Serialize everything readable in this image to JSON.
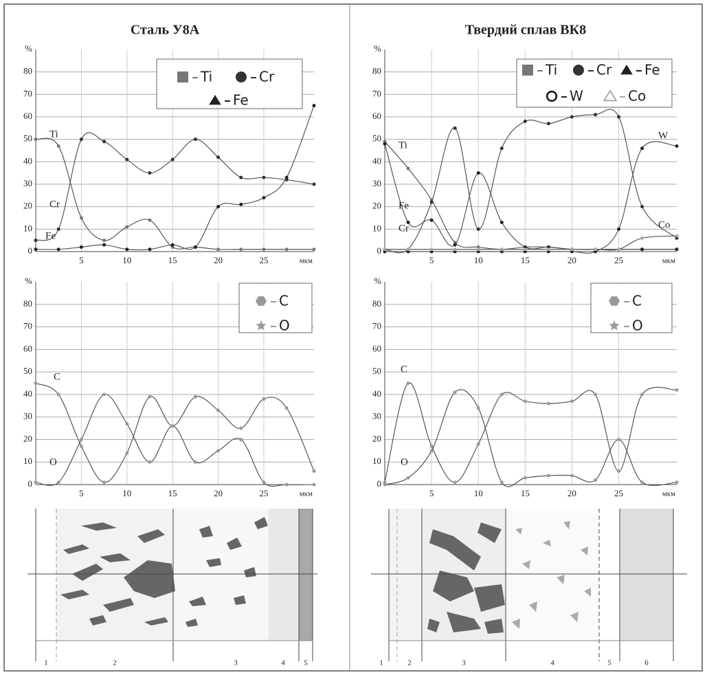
{
  "panels": [
    {
      "title": "Сталь У8А",
      "zones": [
        "1",
        "2",
        "3",
        "4",
        "5"
      ]
    },
    {
      "title": "Твердий сплав ВК8",
      "zones": [
        "1",
        "2",
        "3",
        "4",
        "5",
        "6"
      ]
    }
  ],
  "chart_data": [
    {
      "type": "line",
      "ylabel": "%",
      "xlabel": "мкм",
      "grid": true,
      "xlim": [
        0,
        30.5
      ],
      "ylim": [
        0,
        90
      ],
      "xticks": [
        5,
        10,
        15,
        20,
        25
      ],
      "yticks": [
        0,
        10,
        20,
        30,
        40,
        50,
        60,
        70,
        80
      ],
      "x": [
        0,
        2.5,
        5,
        7.5,
        10,
        12.5,
        15,
        17.5,
        20,
        22.5,
        25,
        27.5,
        30.5
      ],
      "series": [
        {
          "name": "Ti",
          "color": "#777777",
          "marker": "square",
          "values": [
            50,
            47,
            15,
            5,
            11,
            14,
            2,
            2,
            1,
            1,
            1,
            1,
            1
          ]
        },
        {
          "name": "Cr",
          "color": "#333333",
          "marker": "circle",
          "values": [
            5,
            10,
            50,
            49,
            41,
            35,
            41,
            50,
            42,
            33,
            33,
            32,
            30
          ]
        },
        {
          "name": "Fe",
          "color": "#222222",
          "marker": "triangle",
          "values": [
            1,
            1,
            2,
            3,
            1,
            1,
            3,
            2,
            20,
            21,
            24,
            33,
            65
          ]
        }
      ]
    },
    {
      "type": "line",
      "ylabel": "%",
      "xlabel": "мкм",
      "grid": true,
      "xlim": [
        0,
        30.5
      ],
      "ylim": [
        0,
        90
      ],
      "xticks": [
        5,
        10,
        15,
        20,
        25
      ],
      "yticks": [
        0,
        10,
        20,
        30,
        40,
        50,
        60,
        70,
        80
      ],
      "x": [
        0,
        2.5,
        5,
        7.5,
        10,
        12.5,
        15,
        17.5,
        20,
        22.5,
        25,
        27.5,
        30.5
      ],
      "series": [
        {
          "name": "C",
          "color": "#999999",
          "marker": "hexagon",
          "values": [
            45,
            40,
            17,
            1,
            14,
            39,
            26,
            39,
            33,
            25,
            38,
            34,
            6
          ]
        },
        {
          "name": "O",
          "color": "#999999",
          "marker": "star",
          "values": [
            1,
            1,
            20,
            40,
            27,
            10,
            26,
            10,
            15,
            20,
            1,
            0,
            0
          ]
        }
      ]
    },
    {
      "type": "line",
      "ylabel": "%",
      "xlabel": "мкм",
      "grid": true,
      "xlim": [
        0,
        31.2
      ],
      "ylim": [
        0,
        90
      ],
      "xticks": [
        5,
        10,
        15,
        20,
        25
      ],
      "yticks": [
        0,
        10,
        20,
        30,
        40,
        50,
        60,
        70,
        80
      ],
      "x": [
        0,
        2.5,
        5,
        7.5,
        10,
        12.5,
        15,
        17.5,
        20,
        22.5,
        25,
        27.5,
        31.2
      ],
      "series": [
        {
          "name": "Ti",
          "color": "#777777",
          "marker": "square",
          "values": [
            49,
            37,
            23,
            4,
            2,
            1,
            2,
            2,
            1,
            1,
            1,
            1,
            1
          ]
        },
        {
          "name": "Cr",
          "color": "#333333",
          "marker": "circle",
          "values": [
            1,
            1,
            22,
            55,
            10,
            46,
            58,
            57,
            60,
            61,
            60,
            20,
            6
          ]
        },
        {
          "name": "Fe",
          "color": "#222222",
          "marker": "triangle",
          "values": [
            48,
            13,
            14,
            3,
            35,
            13,
            2,
            2,
            1,
            1,
            1,
            1,
            1
          ]
        },
        {
          "name": "W",
          "color": "#222222",
          "marker": "open-circle",
          "values": [
            0,
            0,
            0,
            0,
            0,
            0,
            0,
            0,
            0,
            0,
            10,
            46,
            47
          ]
        },
        {
          "name": "Co",
          "color": "#aaaaaa",
          "marker": "open-triangle",
          "values": [
            1,
            1,
            1,
            1,
            1,
            1,
            1,
            1,
            1,
            1,
            1,
            6,
            7
          ]
        }
      ]
    },
    {
      "type": "line",
      "ylabel": "%",
      "xlabel": "мкм",
      "grid": true,
      "xlim": [
        0,
        31.2
      ],
      "ylim": [
        0,
        90
      ],
      "xticks": [
        5,
        10,
        15,
        20,
        25
      ],
      "yticks": [
        0,
        10,
        20,
        30,
        40,
        50,
        60,
        70,
        80
      ],
      "x": [
        0,
        2.5,
        5,
        7.5,
        10,
        12.5,
        15,
        17.5,
        20,
        22.5,
        25,
        27.5,
        31.2
      ],
      "series": [
        {
          "name": "C",
          "color": "#999999",
          "marker": "hexagon",
          "values": [
            1,
            45,
            17,
            1,
            18,
            40,
            37,
            36,
            37,
            40,
            6,
            40,
            42
          ]
        },
        {
          "name": "O",
          "color": "#999999",
          "marker": "star",
          "values": [
            0,
            3,
            15,
            41,
            34,
            1,
            3,
            4,
            4,
            2,
            20,
            1,
            1
          ]
        }
      ]
    }
  ]
}
